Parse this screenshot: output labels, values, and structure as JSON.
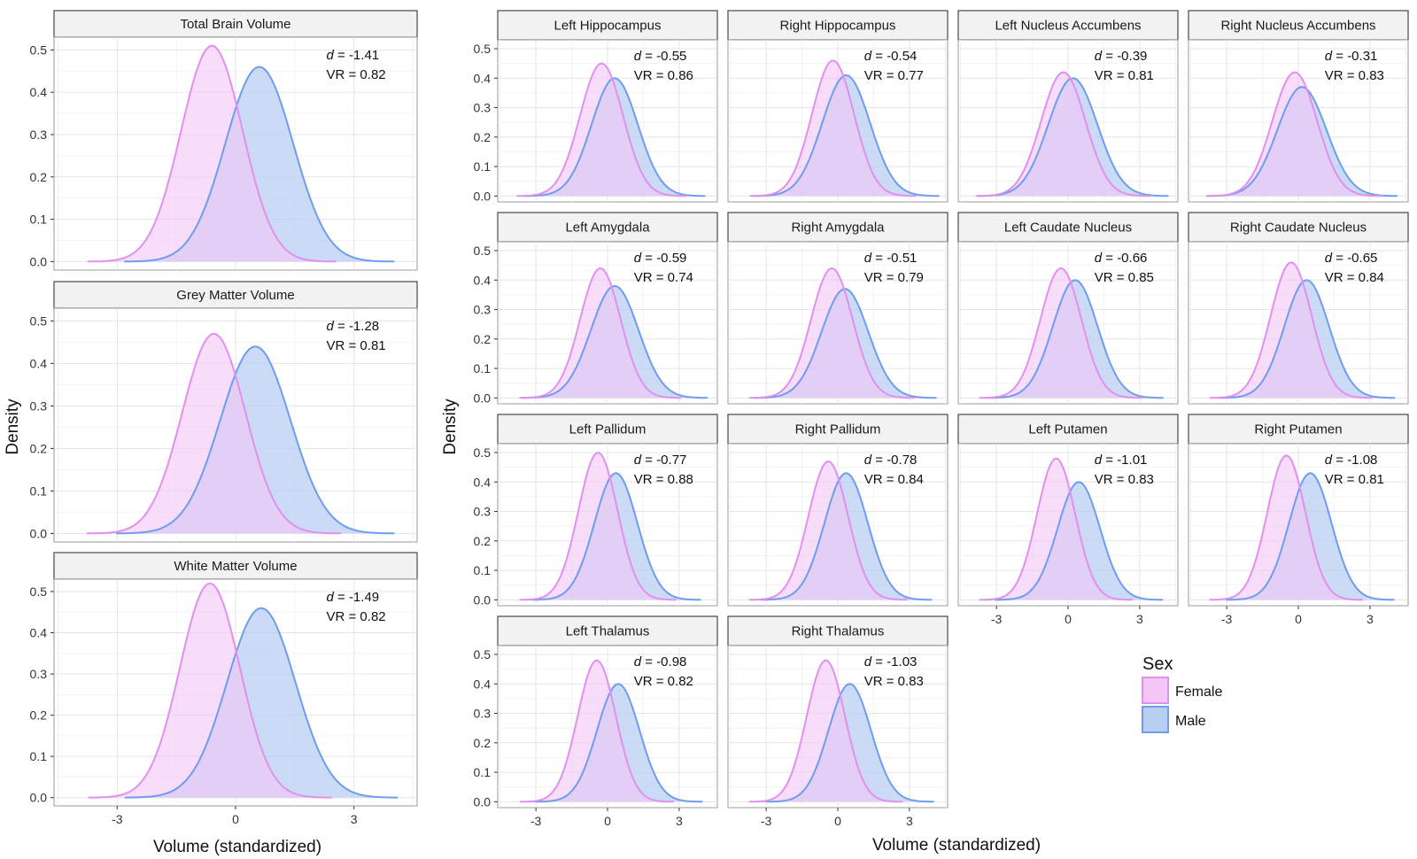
{
  "chart_data": {
    "type": "area",
    "subtype": "faceted density plot",
    "x_axis_label": "Volume (standardized)",
    "y_axis_label": "Density",
    "x_ticks": [
      "-3",
      "0",
      "3"
    ],
    "y_ticks": [
      "0.0",
      "0.1",
      "0.2",
      "0.3",
      "0.4",
      "0.5"
    ],
    "xlim": [
      -4.6,
      4.6
    ],
    "ylim": [
      -0.02,
      0.53
    ],
    "grid": true,
    "legend": {
      "title": "Sex",
      "position": "right",
      "entries": [
        {
          "name": "Female",
          "fill": "#f3c6f7",
          "stroke": "#e18ff0"
        },
        {
          "name": "Male",
          "fill": "#b9cff2",
          "stroke": "#6e9cef"
        }
      ]
    },
    "facets": [
      {
        "title": "Total Brain Volume",
        "d": "-1.41",
        "vr": "0.82",
        "female": {
          "mean": -0.6,
          "sd": 0.78,
          "peak": 0.51
        },
        "male": {
          "mean": 0.6,
          "sd": 0.86,
          "peak": 0.46
        }
      },
      {
        "title": "Grey Matter Volume",
        "d": "-1.28",
        "vr": "0.81",
        "female": {
          "mean": -0.55,
          "sd": 0.8,
          "peak": 0.47
        },
        "male": {
          "mean": 0.5,
          "sd": 0.89,
          "peak": 0.44
        }
      },
      {
        "title": "White Matter Volume",
        "d": "-1.49",
        "vr": "0.82",
        "female": {
          "mean": -0.65,
          "sd": 0.76,
          "peak": 0.52
        },
        "male": {
          "mean": 0.65,
          "sd": 0.87,
          "peak": 0.46
        }
      },
      {
        "title": "Left Hippocampus",
        "d": "-0.55",
        "vr": "0.86",
        "female": {
          "mean": -0.25,
          "sd": 0.9,
          "peak": 0.45
        },
        "male": {
          "mean": 0.3,
          "sd": 0.97,
          "peak": 0.4
        }
      },
      {
        "title": "Right Hippocampus",
        "d": "-0.54",
        "vr": "0.77",
        "female": {
          "mean": -0.2,
          "sd": 0.88,
          "peak": 0.46
        },
        "male": {
          "mean": 0.35,
          "sd": 1.0,
          "peak": 0.41
        }
      },
      {
        "title": "Left Nucleus Accumbens",
        "d": "-0.39",
        "vr": "0.81",
        "female": {
          "mean": -0.2,
          "sd": 0.93,
          "peak": 0.42
        },
        "male": {
          "mean": 0.2,
          "sd": 1.03,
          "peak": 0.4
        }
      },
      {
        "title": "Right Nucleus Accumbens",
        "d": "-0.31",
        "vr": "0.83",
        "female": {
          "mean": -0.15,
          "sd": 0.94,
          "peak": 0.42
        },
        "male": {
          "mean": 0.15,
          "sd": 1.03,
          "peak": 0.37
        }
      },
      {
        "title": "Left Amygdala",
        "d": "-0.59",
        "vr": "0.74",
        "female": {
          "mean": -0.3,
          "sd": 0.85,
          "peak": 0.44
        },
        "male": {
          "mean": 0.3,
          "sd": 1.0,
          "peak": 0.38
        }
      },
      {
        "title": "Right Amygdala",
        "d": "-0.51",
        "vr": "0.79",
        "female": {
          "mean": -0.25,
          "sd": 0.87,
          "peak": 0.44
        },
        "male": {
          "mean": 0.3,
          "sd": 0.98,
          "peak": 0.37
        }
      },
      {
        "title": "Left Caudate Nucleus",
        "d": "-0.66",
        "vr": "0.85",
        "female": {
          "mean": -0.3,
          "sd": 0.86,
          "peak": 0.44
        },
        "male": {
          "mean": 0.3,
          "sd": 0.94,
          "peak": 0.4
        }
      },
      {
        "title": "Right Caudate Nucleus",
        "d": "-0.65",
        "vr": "0.84",
        "female": {
          "mean": -0.3,
          "sd": 0.86,
          "peak": 0.46
        },
        "male": {
          "mean": 0.35,
          "sd": 0.94,
          "peak": 0.4
        }
      },
      {
        "title": "Left Pallidum",
        "d": "-0.77",
        "vr": "0.88",
        "female": {
          "mean": -0.4,
          "sd": 0.82,
          "peak": 0.5
        },
        "male": {
          "mean": 0.35,
          "sd": 0.9,
          "peak": 0.43
        }
      },
      {
        "title": "Right Pallidum",
        "d": "-0.78",
        "vr": "0.84",
        "female": {
          "mean": -0.4,
          "sd": 0.83,
          "peak": 0.47
        },
        "male": {
          "mean": 0.35,
          "sd": 0.91,
          "peak": 0.43
        }
      },
      {
        "title": "Left Putamen",
        "d": "-1.01",
        "vr": "0.83",
        "female": {
          "mean": -0.5,
          "sd": 0.8,
          "peak": 0.48
        },
        "male": {
          "mean": 0.45,
          "sd": 0.89,
          "peak": 0.4
        }
      },
      {
        "title": "Right Putamen",
        "d": "-1.08",
        "vr": "0.81",
        "female": {
          "mean": -0.5,
          "sd": 0.8,
          "peak": 0.49
        },
        "male": {
          "mean": 0.5,
          "sd": 0.89,
          "peak": 0.43
        }
      },
      {
        "title": "Left Thalamus",
        "d": "-0.98",
        "vr": "0.82",
        "female": {
          "mean": -0.45,
          "sd": 0.8,
          "peak": 0.48
        },
        "male": {
          "mean": 0.45,
          "sd": 0.89,
          "peak": 0.4
        }
      },
      {
        "title": "Right Thalamus",
        "d": "-1.03",
        "vr": "0.83",
        "female": {
          "mean": -0.5,
          "sd": 0.8,
          "peak": 0.48
        },
        "male": {
          "mean": 0.5,
          "sd": 0.89,
          "peak": 0.4
        }
      }
    ]
  }
}
